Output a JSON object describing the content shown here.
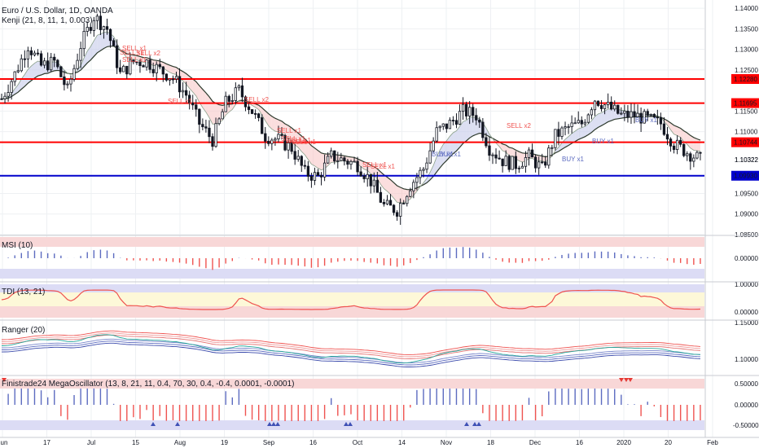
{
  "header": {
    "title": "Euro / U.S. Dollar, 1D, OANDA",
    "indicator": "Kenji (21, 8, 11, 1, 0.003)"
  },
  "panes": {
    "msi_label": "MSI (10)",
    "tdi_label": "TDI (13, 21)",
    "ranger_label": "Ranger (20)",
    "mega_label": "Finistrade24 MegaOscillator (13, 8, 21, 11, 0.4, 70, 30, 0.4, -0.4, 0.0001, -0.0001)"
  },
  "colors": {
    "bull": "#ffffff",
    "bear": "#131722",
    "resistance": "#ff0000",
    "support": "#0000cc",
    "sell_signal": "#ef5350",
    "buy_signal": "#5c6bc0",
    "band_red": "#f8d7d7",
    "band_blue": "#dcdcf5",
    "band_yellow": "#fdf8d8"
  },
  "x_axis": {
    "ticks": [
      "Jun",
      "17",
      "Jul",
      "15",
      "Aug",
      "19",
      "Sep",
      "16",
      "Oct",
      "14",
      "Nov",
      "18",
      "Dec",
      "16",
      "2020",
      "20",
      "Feb"
    ]
  },
  "price_axis": {
    "ticks": [
      "1.14000",
      "1.13500",
      "1.13000",
      "1.12500",
      "1.11500",
      "1.11000",
      "1.10322",
      "1.09500",
      "1.09000",
      "1.08500"
    ],
    "marked": [
      "1.12280",
      "1.11695",
      "1.10744",
      "1.09930"
    ]
  },
  "msi_axis": {
    "ticks": [
      "0.00000"
    ]
  },
  "tdi_axis": {
    "ticks": [
      "1.00000",
      "0.00000"
    ]
  },
  "ranger_axis": {
    "ticks": [
      "1.15000",
      "1.10000"
    ]
  },
  "mega_axis": {
    "ticks": [
      "0.50000",
      "0.00000",
      "-0.50000"
    ]
  },
  "signals": {
    "sell": [
      "SELL x1",
      "SELL x1",
      "SELL x2",
      "SELL x1",
      "SELL x1",
      "SELL x2",
      "SELL x1",
      "SELL x1",
      "SELL x1",
      "SELL x1",
      "SELL x1",
      "SELL x1",
      "SELL x2"
    ],
    "buy": [
      "BUY x1",
      "BUY x1",
      "BUY x1",
      "BUY x1",
      "BUY x1"
    ]
  },
  "chart_data": {
    "type": "candlestick",
    "symbol": "EURUSD",
    "timeframe": "1D",
    "ylim": [
      1.085,
      1.142
    ],
    "horizontal_levels": [
      {
        "value": 1.1228,
        "color": "#ff0000"
      },
      {
        "value": 1.11695,
        "color": "#ff0000"
      },
      {
        "value": 1.10744,
        "color": "#ff0000"
      },
      {
        "value": 1.0993,
        "color": "#0000cc"
      }
    ],
    "last_price": 1.10322,
    "close_path": [
      [
        0,
        1.118
      ],
      [
        4,
        1.124
      ],
      [
        8,
        1.131
      ],
      [
        12,
        1.126
      ],
      [
        16,
        1.127
      ],
      [
        20,
        1.12
      ],
      [
        24,
        1.131
      ],
      [
        28,
        1.138
      ],
      [
        32,
        1.135
      ],
      [
        36,
        1.124
      ],
      [
        40,
        1.127
      ],
      [
        44,
        1.127
      ],
      [
        48,
        1.125
      ],
      [
        52,
        1.123
      ],
      [
        56,
        1.119
      ],
      [
        60,
        1.112
      ],
      [
        64,
        1.108
      ],
      [
        68,
        1.117
      ],
      [
        72,
        1.12
      ],
      [
        76,
        1.115
      ],
      [
        80,
        1.109
      ],
      [
        84,
        1.108
      ],
      [
        88,
        1.106
      ],
      [
        92,
        1.1
      ],
      [
        96,
        1.099
      ],
      [
        100,
        1.104
      ],
      [
        104,
        1.103
      ],
      [
        108,
        1.102
      ],
      [
        112,
        1.098
      ],
      [
        116,
        1.092
      ],
      [
        120,
        1.091
      ],
      [
        124,
        1.097
      ],
      [
        128,
        1.101
      ],
      [
        132,
        1.11
      ],
      [
        136,
        1.112
      ],
      [
        140,
        1.115
      ],
      [
        144,
        1.114
      ],
      [
        148,
        1.106
      ],
      [
        152,
        1.103
      ],
      [
        156,
        1.102
      ],
      [
        160,
        1.104
      ],
      [
        164,
        1.101
      ],
      [
        168,
        1.109
      ],
      [
        172,
        1.111
      ],
      [
        176,
        1.112
      ],
      [
        180,
        1.118
      ],
      [
        184,
        1.116
      ],
      [
        188,
        1.114
      ],
      [
        192,
        1.114
      ],
      [
        196,
        1.113
      ],
      [
        200,
        1.112
      ],
      [
        204,
        1.107
      ],
      [
        208,
        1.105
      ],
      [
        212,
        1.1032
      ]
    ]
  }
}
